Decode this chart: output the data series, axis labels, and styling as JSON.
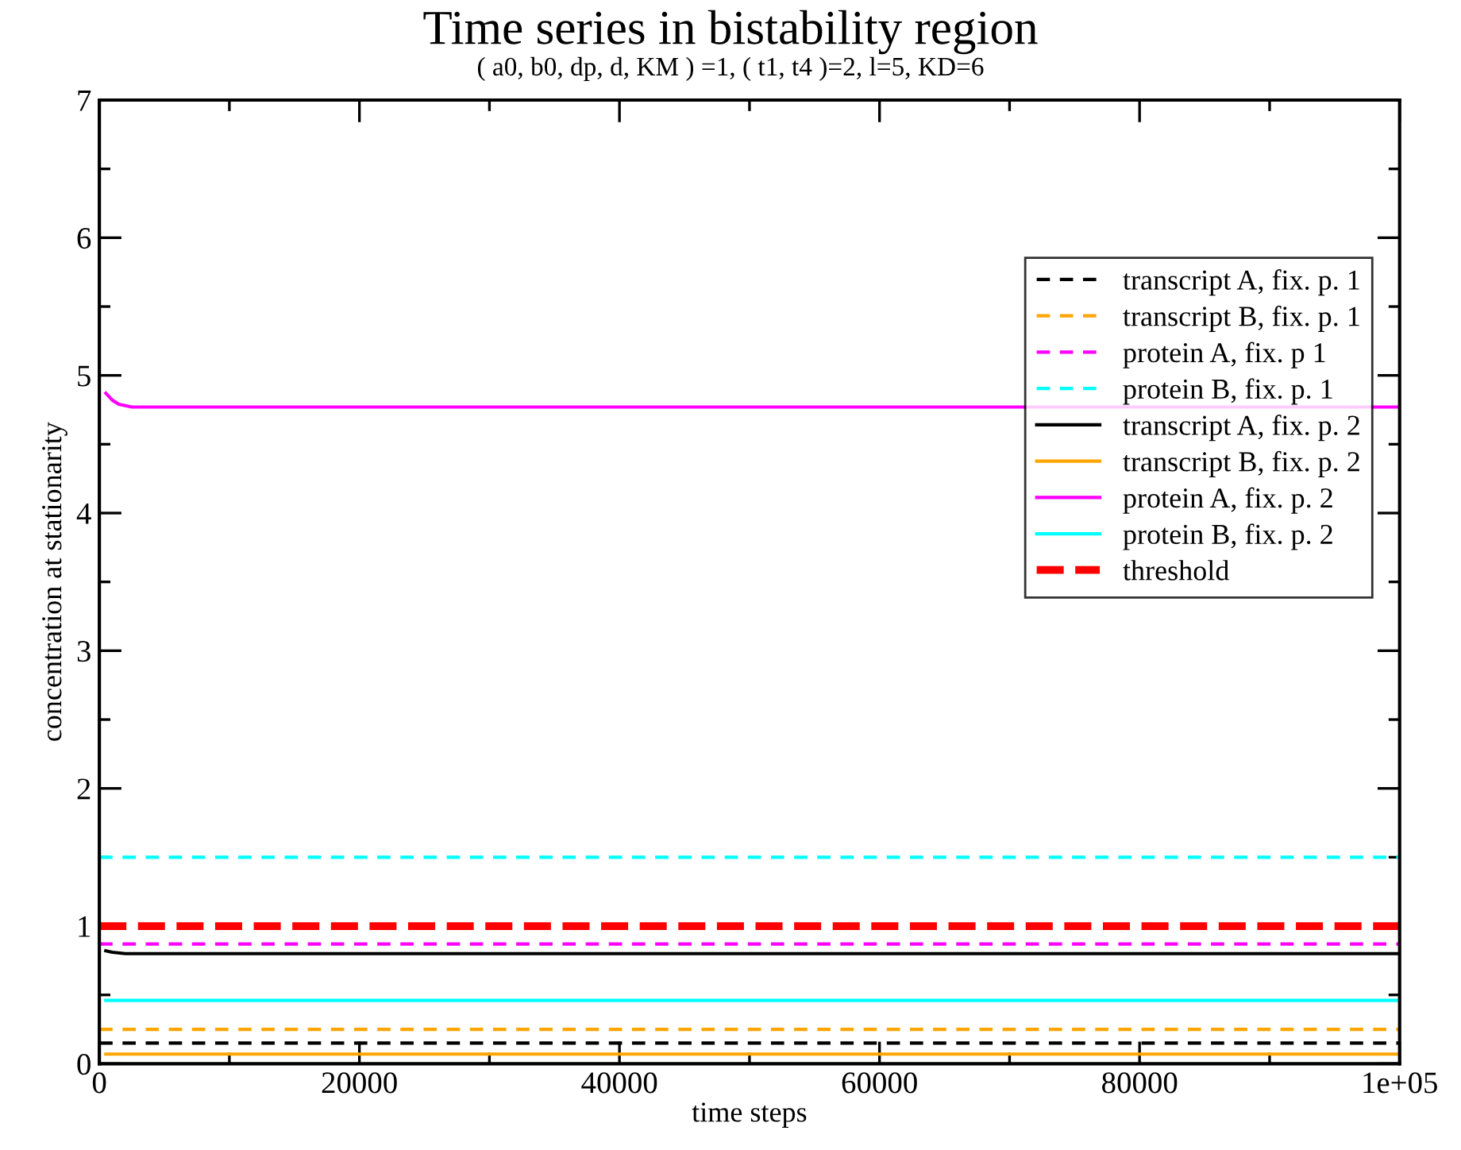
{
  "chart_data": {
    "type": "line",
    "title": "Time series in bistability region",
    "subtitle": "( a0, b0, dp, d, KM ) =1, ( t1, t4 )=2, l=5, KD=6",
    "xlabel": "time steps",
    "ylabel": "concentration at stationarity",
    "xlim": [
      0,
      100000
    ],
    "ylim": [
      0,
      7
    ],
    "xticks": [
      0,
      {
        "value": 10000,
        "label": null
      },
      20000,
      {
        "value": 30000,
        "label": null
      },
      40000,
      {
        "value": 50000,
        "label": null
      },
      60000,
      {
        "value": 70000,
        "label": null
      },
      80000,
      {
        "value": 90000,
        "label": null
      },
      {
        "value": 100000,
        "label": "1e+05"
      }
    ],
    "yticks": [
      0,
      {
        "value": 0.5,
        "label": null
      },
      1,
      {
        "value": 1.5,
        "label": null
      },
      2,
      {
        "value": 2.5,
        "label": null
      },
      3,
      {
        "value": 3.5,
        "label": null
      },
      4,
      {
        "value": 4.5,
        "label": null
      },
      5,
      {
        "value": 5.5,
        "label": null
      },
      6,
      {
        "value": 6.5,
        "label": null
      },
      7
    ],
    "grid": false,
    "legend": "right",
    "marker": "none",
    "series": [
      {
        "name": "transcript A, fix. p. 1",
        "color": "#000000",
        "line_style": "dashed",
        "x": [
          0,
          100000
        ],
        "values": [
          0.15,
          0.15
        ]
      },
      {
        "name": "transcript B, fix. p. 1",
        "color": "#ffa500",
        "line_style": "dashed",
        "x": [
          0,
          100000
        ],
        "values": [
          0.25,
          0.25
        ]
      },
      {
        "name": "protein A, fix. p 1",
        "color": "#ff00ff",
        "line_style": "dashed",
        "x": [
          0,
          100000
        ],
        "values": [
          0.87,
          0.87
        ]
      },
      {
        "name": "protein B, fix. p. 1",
        "color": "#00ffff",
        "line_style": "dashed",
        "x": [
          0,
          100000
        ],
        "values": [
          1.5,
          1.5
        ]
      },
      {
        "name": "transcript A, fix. p. 2",
        "color": "#000000",
        "line_style": "solid",
        "x": [
          500,
          1000,
          2000,
          100000
        ],
        "values": [
          0.82,
          0.81,
          0.8,
          0.8
        ]
      },
      {
        "name": "transcript B, fix. p. 2",
        "color": "#ffa500",
        "line_style": "solid",
        "x": [
          500,
          100000
        ],
        "values": [
          0.07,
          0.07
        ]
      },
      {
        "name": "protein A, fix. p. 2",
        "color": "#ff00ff",
        "line_style": "solid",
        "x": [
          500,
          1000,
          1500,
          2500,
          4000,
          100000
        ],
        "values": [
          4.87,
          4.82,
          4.79,
          4.77,
          4.77,
          4.77
        ]
      },
      {
        "name": "protein B, fix. p. 2",
        "color": "#00ffff",
        "line_style": "solid",
        "x": [
          500,
          100000
        ],
        "values": [
          0.46,
          0.46
        ]
      }
    ],
    "ref_lines": [
      {
        "axis": "y",
        "value": 1,
        "label": "threshold",
        "color": "#ff0000",
        "line_style": "dashed"
      }
    ]
  }
}
